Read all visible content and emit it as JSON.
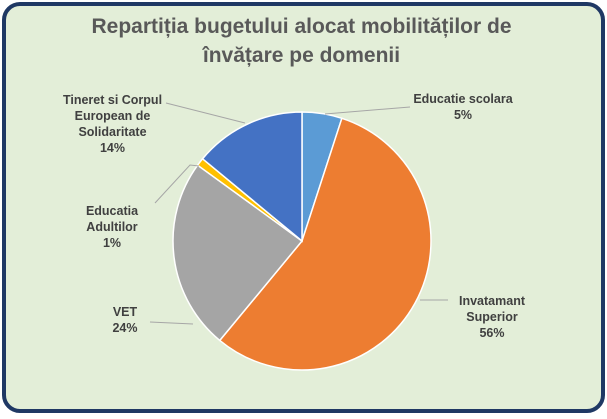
{
  "chart_data": {
    "type": "pie",
    "title_line1": "Repartiția bugetului alocat mobilităților de",
    "title_line2": "învățare pe domenii",
    "slices": [
      {
        "name": "Educatie scolara",
        "value": 5,
        "pct": "5%",
        "color": "#5b9bd5"
      },
      {
        "name": "Invatamant Superior",
        "value": 56,
        "pct": "56%",
        "color": "#ed7d31"
      },
      {
        "name": "VET",
        "value": 24,
        "pct": "24%",
        "color": "#a5a5a5"
      },
      {
        "name": "Educatia Adultilor",
        "value": 1,
        "pct": "1%",
        "color": "#ffc000"
      },
      {
        "name": "Tineret si Corpul European de Solidaritate",
        "value": 14,
        "pct": "14%",
        "color": "#4472c4"
      }
    ],
    "labels": {
      "scolara": {
        "l1": "Educatie scolara",
        "l2": "5%"
      },
      "superior": {
        "l1": "Invatamant",
        "l2": "Superior",
        "l3": "56%"
      },
      "vet": {
        "l1": "VET",
        "l2": "24%"
      },
      "adulti": {
        "l1": "Educatia",
        "l2": "Adultilor",
        "l3": "1%"
      },
      "tineret": {
        "l1": "Tineret si Corpul",
        "l2": "European de",
        "l3": "Solidaritate",
        "l4": "14%"
      }
    }
  }
}
